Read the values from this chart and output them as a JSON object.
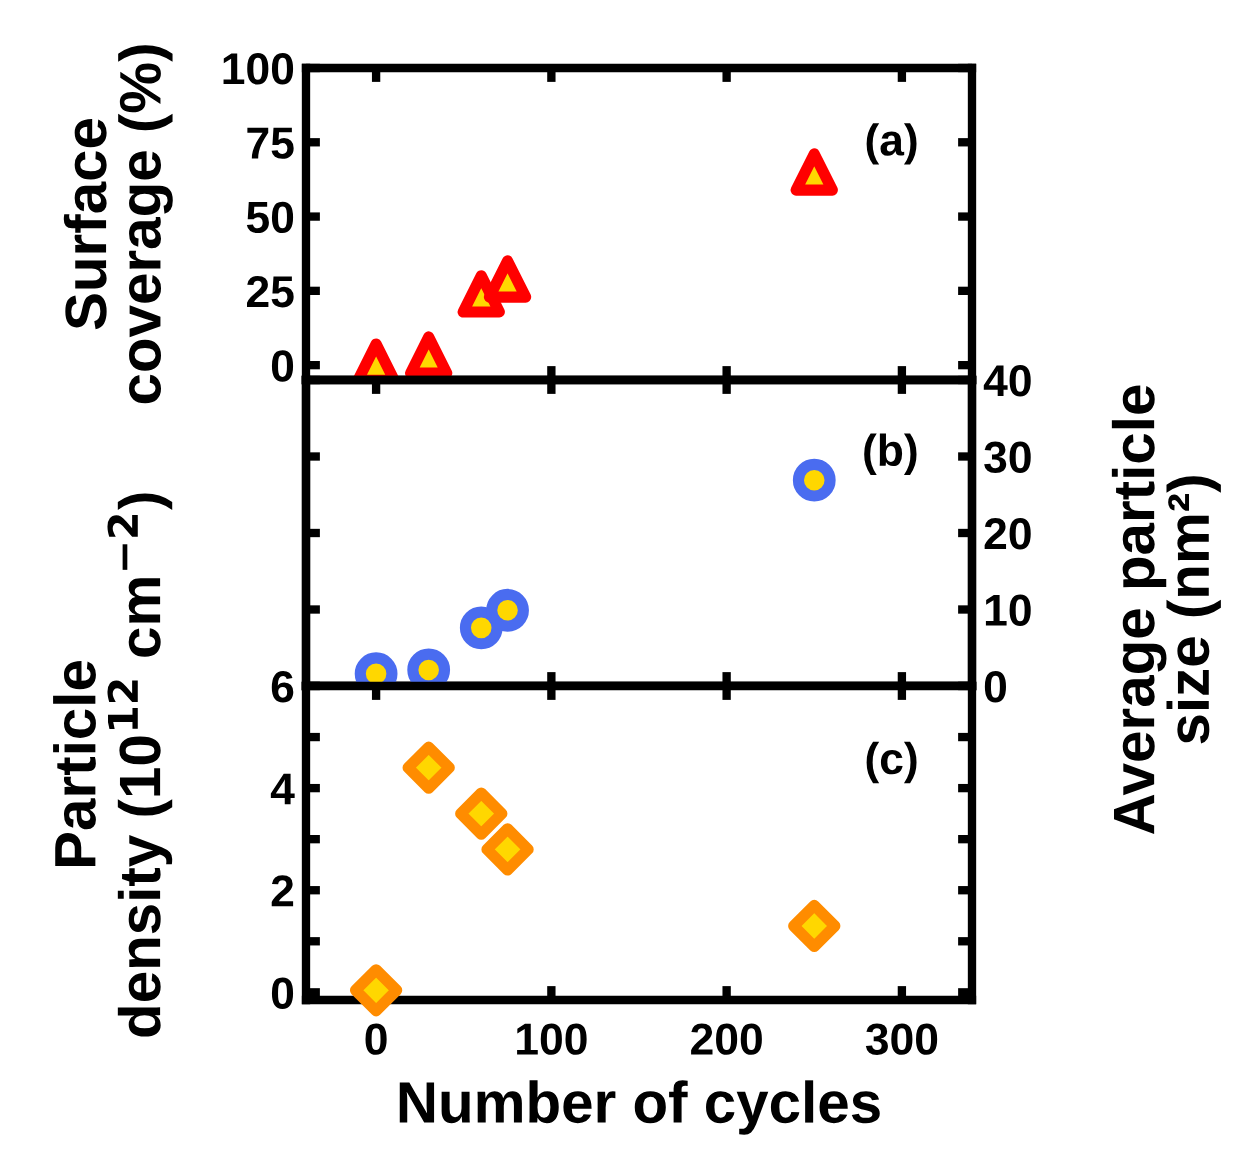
{
  "chart_data": [
    {
      "type": "scatter",
      "x": [
        0,
        30,
        60,
        75,
        250
      ],
      "ylabel": "Surface\ncoverage (%)",
      "annotations": [
        "(a)"
      ],
      "series": [
        {
          "color": "#ff0000",
          "values": [
            1,
            3.4,
            24,
            29,
            65
          ]
        }
      ],
      "marker": "triangle",
      "xlim": [
        -40,
        340
      ],
      "xticks": [
        0,
        100,
        200,
        300
      ],
      "ylim": [
        -5,
        100
      ],
      "yticks": [
        0,
        25,
        50,
        75,
        100
      ],
      "tick_labels": "y",
      "grid": false
    },
    {
      "type": "scatter",
      "x": [
        0,
        30,
        60,
        75,
        250
      ],
      "y2label": "Average particle\nsize (nm²)",
      "annotations": [
        "(b)"
      ],
      "series": [
        {
          "color": "#4a6cf0",
          "values": [
            1.6,
            2.1,
            7.6,
            9.9,
            26.9
          ],
          "axis": "y2"
        }
      ],
      "marker": "circle",
      "xlim": [
        -40,
        340
      ],
      "xticks": [
        0,
        100,
        200,
        300
      ],
      "y2lim": [
        0,
        40
      ],
      "y2ticks": [
        0,
        10,
        20,
        30,
        40
      ],
      "tick_labels": "y",
      "grid": false
    },
    {
      "type": "scatter",
      "x": [
        0,
        30,
        60,
        75,
        250
      ],
      "xlabel": "Number of cycles",
      "ylabel": "Particle\ndensity (10$^{12}$ cm$^{−2}$)",
      "annotations": [
        "(c)"
      ],
      "series": [
        {
          "color": "#ff8c00",
          "values": [
            0.04,
            4.4,
            3.5,
            2.8,
            1.3
          ]
        }
      ],
      "marker": "diamond",
      "xlim": [
        -40,
        340
      ],
      "xticks": [
        0,
        100,
        200,
        300
      ],
      "ylim": [
        -0.15,
        6
      ],
      "yticks": [
        0,
        {
          "value": 1,
          "label": null
        },
        2,
        {
          "value": 3,
          "label": null
        },
        4,
        {
          "value": 5,
          "label": null
        },
        6
      ],
      "grid": false
    }
  ]
}
